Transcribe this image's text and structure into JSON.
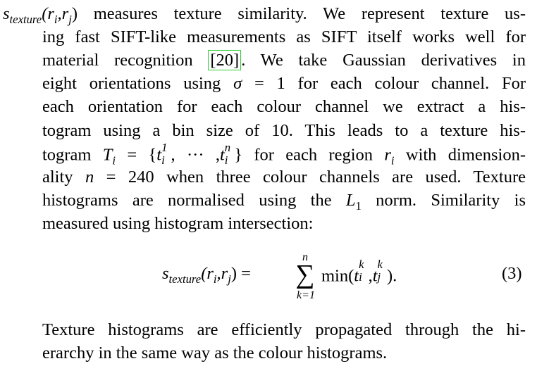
{
  "paragraph1": {
    "line1_lead_sym": "s",
    "line1_lead_sub": "texture",
    "line1_args": "(r",
    "line1_arg_i": "i",
    "line1_comma": ",r",
    "line1_arg_j": "j",
    "line1_close": ")",
    "line1_text": " measures texture similarity. We represent texture us-",
    "line2": "ing fast SIFT-like measurements as SIFT itself works well for",
    "line3_pre": "material recognition ",
    "line3_cite": "[20]",
    "line3_post": ". We take Gaussian derivatives in",
    "line4_pre": "eight orientations using ",
    "line4_sigma": "σ",
    "line4_post": " = 1 for each colour channel. For",
    "line5": "each orientation for each colour channel we extract a his-",
    "line6": "togram using a bin size of 10. This leads to a texture his-",
    "line7_pre": "togram ",
    "line7_T": "T",
    "line7_i": "i",
    "line7_eq": " = {",
    "line7_t1": "t",
    "line7_t1_sup": "1",
    "line7_t1_sub": "i",
    "line7_dots": ", ··· ,",
    "line7_tn": "t",
    "line7_tn_sup": "n",
    "line7_tn_sub": "i",
    "line7_close": "} for each region ",
    "line7_r": "r",
    "line7_r_sub": "i",
    "line7_post": " with dimension-",
    "line8_pre": "ality ",
    "line8_n": "n",
    "line8_post": " = 240 when three colour channels are used. Texture",
    "line9_pre": "histograms are normalised using the ",
    "line9_L": "L",
    "line9_L_sub": "1",
    "line9_post": " norm. Similarity is",
    "line10": "measured using histogram intersection:"
  },
  "equation": {
    "lhs_sym": "s",
    "lhs_sub": "texture",
    "lhs_args_open": "(r",
    "lhs_i": "i",
    "lhs_comma": ",r",
    "lhs_j": "j",
    "lhs_close": ") =",
    "sum_top": "n",
    "sum_symbol": "∑",
    "sum_bottom": "k=1",
    "rhs_min": "min(",
    "rhs_t1": "t",
    "rhs_t1_sup": "k",
    "rhs_t1_sub": "i",
    "rhs_comma": ",",
    "rhs_t2": "t",
    "rhs_t2_sup": "k",
    "rhs_t2_sub": "j",
    "rhs_close": ").",
    "number": "(3)"
  },
  "paragraph2": {
    "line1": "Texture histograms are efficiently propagated through the hi-",
    "line2": "erarchy in the same way as the colour histograms."
  }
}
